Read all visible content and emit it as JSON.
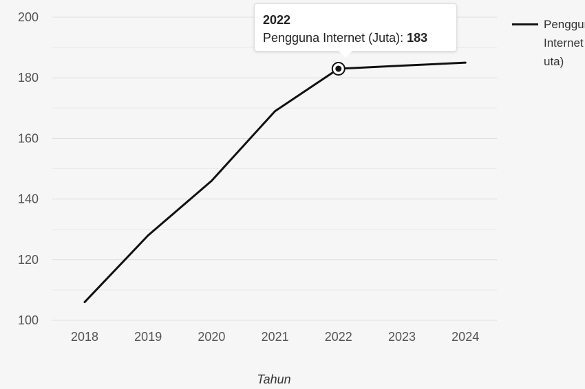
{
  "chart_data": {
    "type": "line",
    "x": [
      2018,
      2019,
      2020,
      2021,
      2022,
      2023,
      2024
    ],
    "categories": [
      "2018",
      "2019",
      "2020",
      "2021",
      "2022",
      "2023",
      "2024"
    ],
    "series": [
      {
        "name": "Pengguna Internet (Juta)",
        "values": [
          106,
          128,
          146,
          169,
          183,
          184,
          185
        ],
        "color": "#111111"
      }
    ],
    "xlabel": "Tahun",
    "ylabel": "",
    "ylim": [
      100,
      200
    ],
    "yticks": [
      100,
      120,
      140,
      160,
      180,
      200
    ],
    "grid": true,
    "legend_position": "right",
    "highlighted_point": {
      "category": "2022",
      "value": 183
    }
  },
  "legend": {
    "label": "Pengguna Internet (Juta)"
  },
  "tooltip": {
    "title": "2022",
    "series_label": "Pengguna Internet (Juta): ",
    "value": "183"
  },
  "colors": {
    "background": "#f6f6f6",
    "grid": "#dddddd",
    "line": "#111111",
    "text": "#555555"
  }
}
